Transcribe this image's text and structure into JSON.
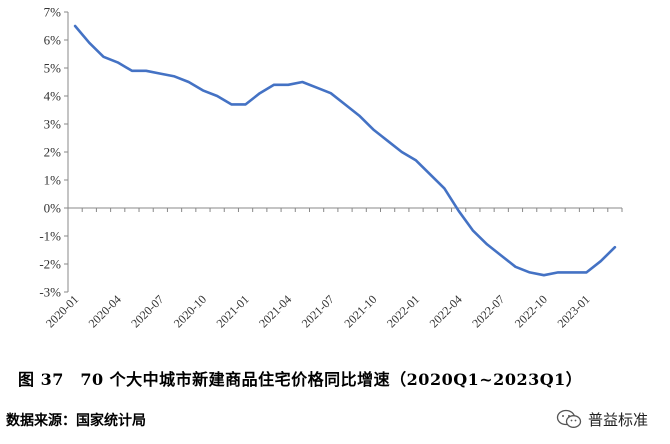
{
  "chart_data": {
    "type": "line",
    "title": "",
    "xlabel": "",
    "ylabel": "",
    "ylim": [
      -3,
      7
    ],
    "y_ticks": [
      "7%",
      "6%",
      "5%",
      "4%",
      "3%",
      "2%",
      "1%",
      "0%",
      "-1%",
      "-2%",
      "-3%"
    ],
    "x_tick_labels": [
      "2020-01",
      "2020-04",
      "2020-07",
      "2020-10",
      "2021-01",
      "2021-04",
      "2021-07",
      "2021-10",
      "2022-01",
      "2022-04",
      "2022-07",
      "2022-10",
      "2023-01"
    ],
    "grid": false,
    "legend": "none",
    "line_color": "#4472C4",
    "series": [
      {
        "x": [
          "2020-01",
          "2020-02",
          "2020-03",
          "2020-04",
          "2020-05",
          "2020-06",
          "2020-07",
          "2020-08",
          "2020-09",
          "2020-10",
          "2020-11",
          "2020-12",
          "2021-01",
          "2021-02",
          "2021-03",
          "2021-04",
          "2021-05",
          "2021-06",
          "2021-07",
          "2021-08",
          "2021-09",
          "2021-10",
          "2021-11",
          "2021-12",
          "2022-01",
          "2022-02",
          "2022-03",
          "2022-04",
          "2022-05",
          "2022-06",
          "2022-07",
          "2022-08",
          "2022-09",
          "2022-10",
          "2022-11",
          "2022-12",
          "2023-01",
          "2023-02",
          "2023-03"
        ],
        "values": [
          6.5,
          5.9,
          5.4,
          5.2,
          4.9,
          4.9,
          4.8,
          4.7,
          4.5,
          4.2,
          4.0,
          3.7,
          3.7,
          4.1,
          4.4,
          4.4,
          4.5,
          4.3,
          4.1,
          3.7,
          3.3,
          2.8,
          2.4,
          2.0,
          1.7,
          1.2,
          0.7,
          -0.1,
          -0.8,
          -1.3,
          -1.7,
          -2.1,
          -2.3,
          -2.4,
          -2.3,
          -2.3,
          -2.3,
          -1.9,
          -1.4
        ]
      }
    ]
  },
  "caption": "图 37　70 个大中城市新建商品住宅价格同比增速（2020Q1~2023Q1）",
  "source": "数据来源：国家统计局",
  "watermark": "普益标准"
}
